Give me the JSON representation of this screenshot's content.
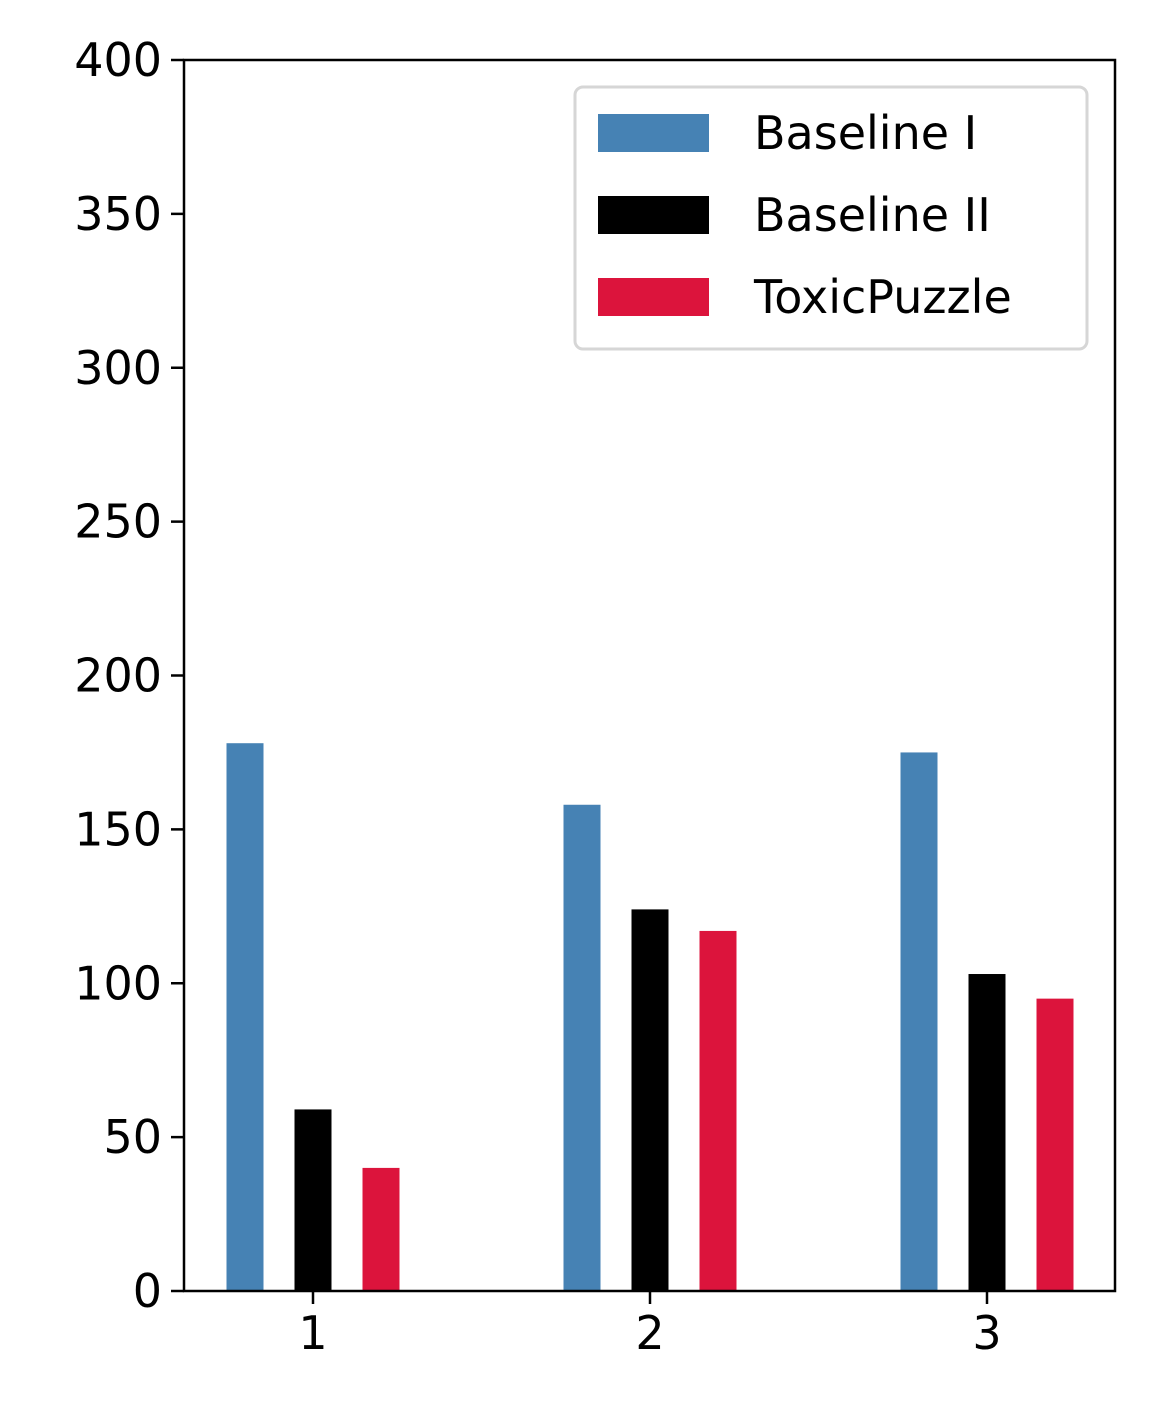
{
  "chart_data": {
    "type": "bar",
    "categories": [
      "1",
      "2",
      "3"
    ],
    "series": [
      {
        "name": "Baseline I",
        "values": [
          178,
          158,
          175
        ],
        "color": "#4682b4"
      },
      {
        "name": "Baseline II",
        "values": [
          59,
          124,
          103
        ],
        "color": "#000000"
      },
      {
        "name": "ToxicPuzzle",
        "values": [
          40,
          117,
          95
        ],
        "color": "#dc143c"
      }
    ],
    "title": "",
    "xlabel": "",
    "ylabel": "",
    "ylim": [
      0,
      400
    ],
    "yticks": [
      0,
      50,
      100,
      150,
      200,
      250,
      300,
      350,
      400
    ],
    "grid": false,
    "legend_position": "top-right"
  }
}
